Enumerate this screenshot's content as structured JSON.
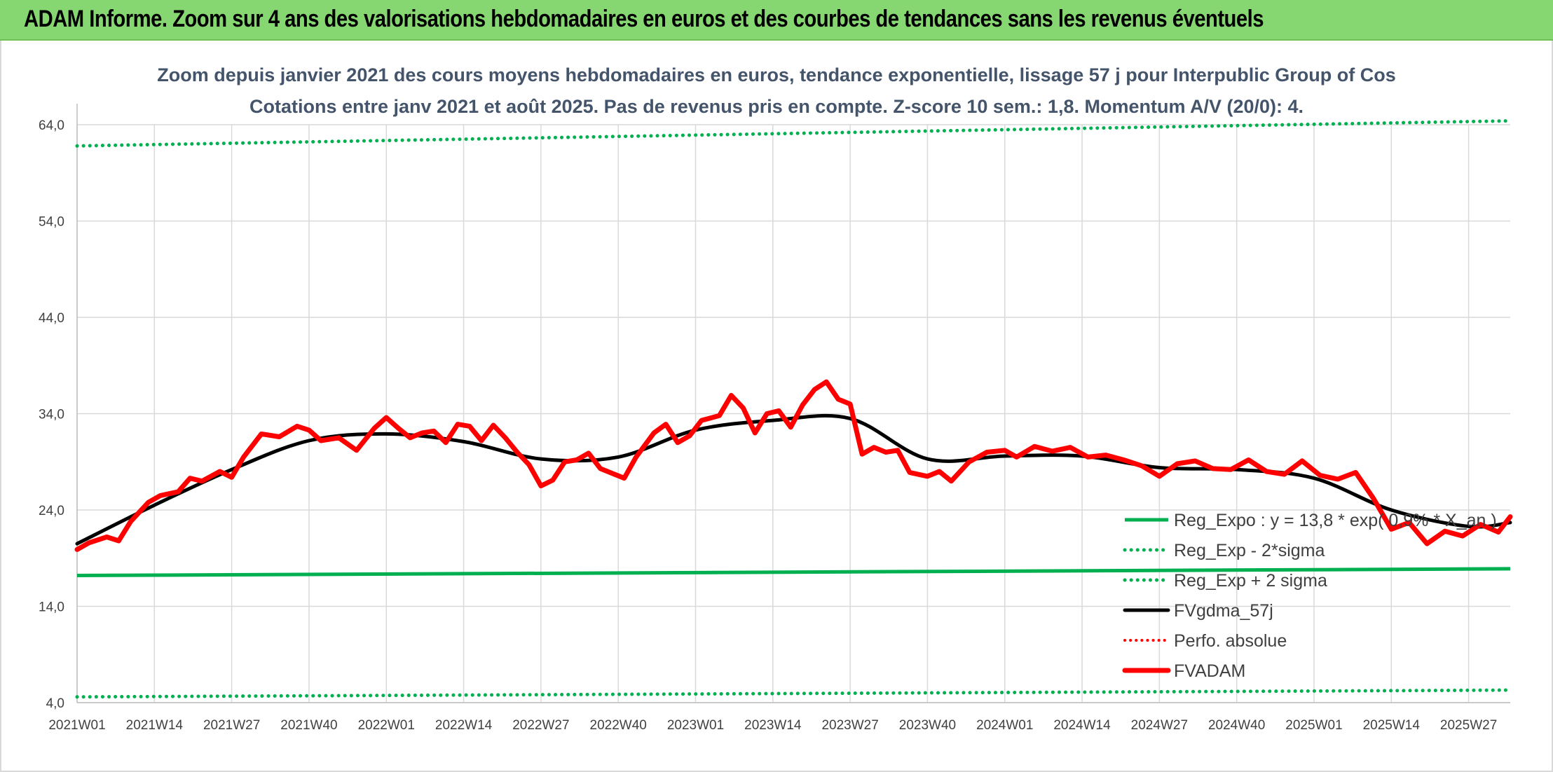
{
  "banner": {
    "title": "ADAM Informe. Zoom sur 4 ans des valorisations hebdomadaires en euros et des courbes de tendances sans les revenus éventuels"
  },
  "colors": {
    "banner_bg": "#86d671",
    "reg_expo": "#00b050",
    "band": "#00b050",
    "fvgdma": "#000000",
    "perfo": "#ff0000",
    "fvadam": "#ff0000",
    "title_text": "#44546a"
  },
  "chart_data": {
    "type": "line",
    "title": "Zoom depuis janvier 2021 des cours moyens hebdomadaires en euros, tendance exponentielle, lissage 57 j pour Interpublic Group of Cos",
    "subtitle": "Cotations entre janv 2021 et août 2025. Pas de revenus pris en compte. Z-score 10 sem.: 1,8. Momentum A/V (20/0): 4.",
    "xlabel": "",
    "ylabel": "",
    "ylim": [
      4,
      64
    ],
    "yticks": [
      "4,0",
      "14,0",
      "24,0",
      "34,0",
      "44,0",
      "54,0",
      "64,0"
    ],
    "xticks": [
      "2021W01",
      "2021W14",
      "2021W27",
      "2021W40",
      "2022W01",
      "2022W14",
      "2022W27",
      "2022W40",
      "2023W01",
      "2023W14",
      "2023W27",
      "2023W40",
      "2024W01",
      "2024W14",
      "2024W27",
      "2024W40",
      "2025W01",
      "2025W14",
      "2025W27"
    ],
    "grid": true,
    "legend_position": "lower-right",
    "series": [
      {
        "name": "Reg_Expo : y = 13,8 * exp( 0,9% *  X_an )",
        "style": "solid-green",
        "x": [
          "2021W01",
          "2025W34"
        ],
        "values": [
          17.2,
          17.9
        ]
      },
      {
        "name": "Reg_Exp - 2*sigma",
        "style": "dotted-green",
        "x": [
          "2021W01",
          "2025W34"
        ],
        "values": [
          4.6,
          5.3
        ]
      },
      {
        "name": "Reg_Exp + 2 sigma",
        "style": "dotted-green",
        "x": [
          "2021W01",
          "2025W34"
        ],
        "values": [
          61.8,
          64.4
        ]
      },
      {
        "name": "FVgdma_57j",
        "style": "solid-black",
        "x": [
          "2021W01",
          "2021W14",
          "2021W27",
          "2021W40",
          "2022W01",
          "2022W14",
          "2022W27",
          "2022W40",
          "2023W01",
          "2023W14",
          "2023W27",
          "2023W40",
          "2024W01",
          "2024W14",
          "2024W27",
          "2024W40",
          "2025W01",
          "2025W14",
          "2025W27",
          "2025W34"
        ],
        "values": [
          20.5,
          24.5,
          28.2,
          31.2,
          31.9,
          31.1,
          29.3,
          29.5,
          32.3,
          33.3,
          33.5,
          29.3,
          29.6,
          29.6,
          28.4,
          28.2,
          27.3,
          24.0,
          22.3,
          22.7
        ]
      },
      {
        "name": "Perfo. absolue",
        "style": "dotted-red",
        "x": [],
        "values": []
      },
      {
        "name": "FVADAM",
        "style": "thick-red",
        "x": [
          "2021W01",
          "2021W03",
          "2021W06",
          "2021W08",
          "2021W10",
          "2021W13",
          "2021W15",
          "2021W18",
          "2021W20",
          "2021W22",
          "2021W25",
          "2021W27",
          "2021W29",
          "2021W32",
          "2021W35",
          "2021W38",
          "2021W40",
          "2021W42",
          "2021W45",
          "2021W48",
          "2021W51",
          "2022W01",
          "2022W03",
          "2022W05",
          "2022W07",
          "2022W09",
          "2022W11",
          "2022W13",
          "2022W15",
          "2022W17",
          "2022W19",
          "2022W21",
          "2022W23",
          "2022W25",
          "2022W27",
          "2022W29",
          "2022W31",
          "2022W33",
          "2022W35",
          "2022W37",
          "2022W39",
          "2022W41",
          "2022W43",
          "2022W46",
          "2022W48",
          "2022W50",
          "2022W52",
          "2023W02",
          "2023W05",
          "2023W07",
          "2023W09",
          "2023W11",
          "2023W13",
          "2023W15",
          "2023W17",
          "2023W19",
          "2023W21",
          "2023W23",
          "2023W25",
          "2023W27",
          "2023W29",
          "2023W31",
          "2023W33",
          "2023W35",
          "2023W37",
          "2023W40",
          "2023W42",
          "2023W44",
          "2023W47",
          "2023W50",
          "2024W01",
          "2024W03",
          "2024W06",
          "2024W09",
          "2024W12",
          "2024W15",
          "2024W18",
          "2024W21",
          "2024W24",
          "2024W27",
          "2024W30",
          "2024W33",
          "2024W36",
          "2024W39",
          "2024W42",
          "2024W45",
          "2024W48",
          "2024W51",
          "2025W02",
          "2025W05",
          "2025W08",
          "2025W11",
          "2025W14",
          "2025W17",
          "2025W20",
          "2025W23",
          "2025W26",
          "2025W29",
          "2025W32",
          "2025W34"
        ],
        "values": [
          19.9,
          20.6,
          21.2,
          20.8,
          22.8,
          24.8,
          25.5,
          25.9,
          27.3,
          27.0,
          28.0,
          27.4,
          29.5,
          31.9,
          31.6,
          32.7,
          32.3,
          31.2,
          31.5,
          30.2,
          32.5,
          33.6,
          32.5,
          31.5,
          32.0,
          32.2,
          31.0,
          32.9,
          32.7,
          31.2,
          32.8,
          31.5,
          30.0,
          28.7,
          26.5,
          27.1,
          29.0,
          29.2,
          29.9,
          28.3,
          27.8,
          27.3,
          29.5,
          32.0,
          32.9,
          31.0,
          31.7,
          33.3,
          33.8,
          35.9,
          34.6,
          32.0,
          34.0,
          34.3,
          32.6,
          34.9,
          36.5,
          37.3,
          35.5,
          35.0,
          29.8,
          30.5,
          30.0,
          30.2,
          27.9,
          27.5,
          28.0,
          27.0,
          29.0,
          30.0,
          30.2,
          29.5,
          30.6,
          30.1,
          30.5,
          29.5,
          29.7,
          29.2,
          28.6,
          27.5,
          28.8,
          29.1,
          28.3,
          28.2,
          29.2,
          28.0,
          27.7,
          29.1,
          27.6,
          27.2,
          27.9,
          25.2,
          22.0,
          22.7,
          20.5,
          21.8,
          21.3,
          22.5,
          21.7,
          23.3
        ]
      }
    ]
  }
}
